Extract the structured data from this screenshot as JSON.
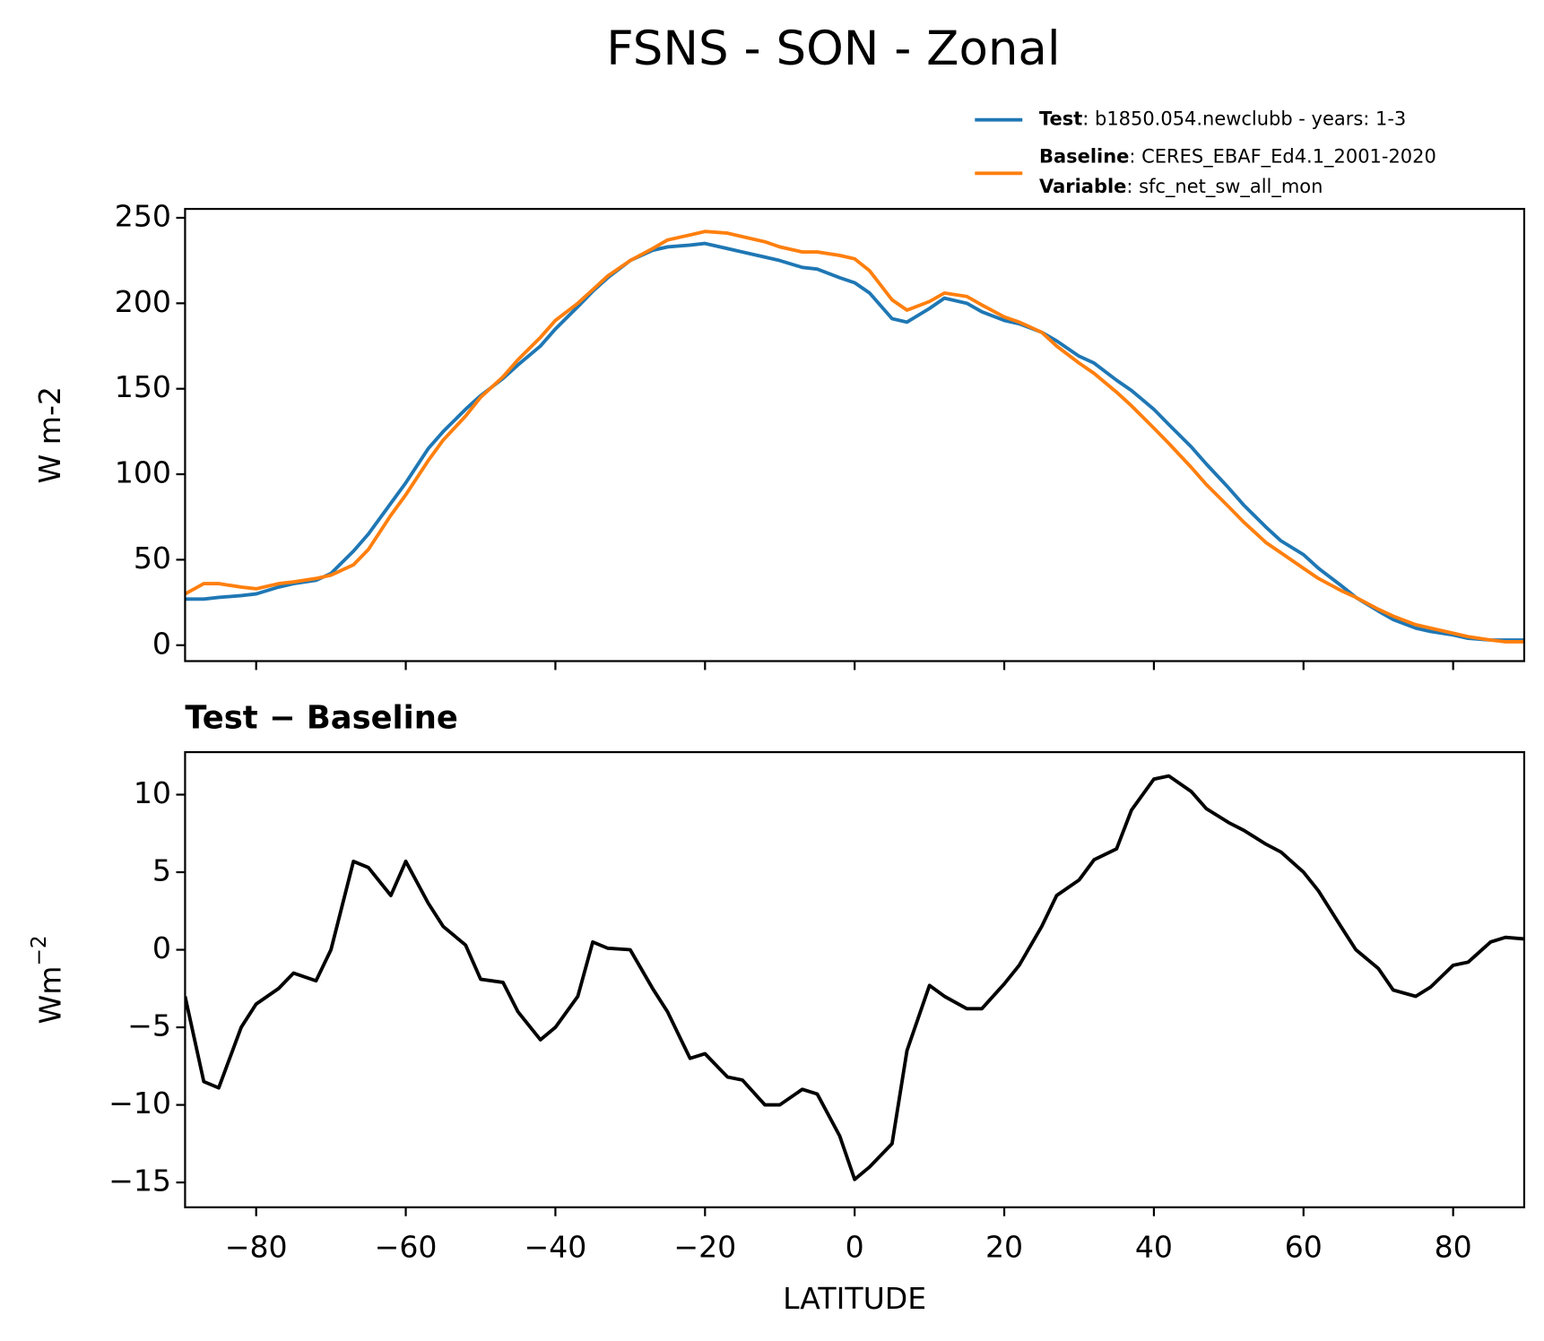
{
  "title": "FSNS - SON - Zonal",
  "chart_data": [
    {
      "type": "line",
      "ylabel": "W m-2",
      "x": [
        -89.5,
        -87,
        -85,
        -82,
        -80,
        -77,
        -75,
        -72,
        -70,
        -67,
        -65,
        -62,
        -60,
        -57,
        -55,
        -52,
        -50,
        -47,
        -45,
        -42,
        -40,
        -37,
        -35,
        -33,
        -30,
        -27,
        -25,
        -22,
        -20,
        -17,
        -15,
        -12,
        -10,
        -7,
        -5,
        -2,
        0,
        2,
        5,
        7,
        10,
        12,
        15,
        17,
        20,
        22,
        25,
        27,
        30,
        32,
        35,
        37,
        40,
        42,
        45,
        47,
        50,
        52,
        55,
        57,
        60,
        62,
        65,
        67,
        70,
        72,
        75,
        77,
        80,
        82,
        85,
        87,
        89.5
      ],
      "series": [
        {
          "name": "Test",
          "detail": ": b1850.054.newclubb - years: 1-3",
          "color": "#1f77b4",
          "values": [
            27,
            27,
            28,
            29,
            30,
            34,
            36,
            38,
            42,
            55,
            65,
            83,
            95,
            115,
            125,
            138,
            146,
            156,
            164,
            175,
            185,
            198,
            207,
            215,
            225,
            231,
            233,
            234,
            235,
            232,
            230,
            227,
            225,
            221,
            220,
            215,
            212,
            206,
            191,
            189,
            197,
            203,
            200,
            195,
            190,
            188,
            183,
            178,
            169,
            165,
            155,
            149,
            138,
            129,
            116,
            106,
            92,
            82,
            69,
            61,
            53,
            45,
            35,
            28,
            20,
            15,
            10,
            8,
            6,
            4,
            3,
            3,
            3
          ]
        },
        {
          "name": "Baseline",
          "detail": ": CERES_EBAF_Ed4.1_2001-2020",
          "color": "#ff7f0e",
          "values": [
            30,
            36,
            36,
            34,
            33,
            36,
            37,
            39,
            41,
            47,
            56,
            76,
            88,
            108,
            120,
            134,
            145,
            157,
            167,
            180,
            190,
            200,
            208,
            216,
            225,
            232,
            237,
            240,
            242,
            241,
            239,
            236,
            233,
            230,
            230,
            228,
            226,
            219,
            202,
            196,
            201,
            206,
            204,
            199,
            192,
            189,
            183,
            175,
            165,
            159,
            148,
            140,
            127,
            118,
            104,
            94,
            81,
            72,
            60,
            54,
            45,
            39,
            32,
            28,
            21,
            17,
            12,
            10,
            7,
            5,
            3,
            2,
            2
          ]
        }
      ],
      "legend_extra": {
        "name": "Variable",
        "detail": ": sfc_net_sw_all_mon"
      },
      "xlim": [
        -89.5,
        89.5
      ],
      "xticks": [
        -80,
        -60,
        -40,
        -20,
        0,
        20,
        40,
        60,
        80
      ],
      "xtick_labels": false,
      "ylim": [
        -9.3,
        255.2
      ],
      "yticks": [
        0,
        50,
        100,
        150,
        200,
        250
      ]
    },
    {
      "type": "line",
      "title": "Test − Baseline",
      "ylabel": "Wm",
      "ylabel_sup": "−2",
      "xlabel": "LATITUDE",
      "x": [
        -89.5,
        -87,
        -85,
        -82,
        -80,
        -77,
        -75,
        -72,
        -70,
        -67,
        -65,
        -62,
        -60,
        -57,
        -55,
        -52,
        -50,
        -47,
        -45,
        -42,
        -40,
        -37,
        -35,
        -33,
        -30,
        -27,
        -25,
        -22,
        -20,
        -17,
        -15,
        -12,
        -10,
        -7,
        -5,
        -2,
        0,
        2,
        5,
        7,
        10,
        12,
        15,
        17,
        20,
        22,
        25,
        27,
        30,
        32,
        35,
        37,
        40,
        42,
        45,
        47,
        50,
        52,
        55,
        57,
        60,
        62,
        65,
        67,
        70,
        72,
        75,
        77,
        80,
        82,
        85,
        87,
        89.5
      ],
      "series": [
        {
          "color": "#000000",
          "values": [
            -3,
            -8.5,
            -8.9,
            -5,
            -3.5,
            -2.5,
            -1.5,
            -2,
            0,
            5.7,
            5.3,
            3.5,
            5.7,
            3,
            1.5,
            0.3,
            -1.9,
            -2.1,
            -4,
            -5.8,
            -5,
            -3,
            0.5,
            0.1,
            0,
            -2.5,
            -4,
            -7,
            -6.7,
            -8.2,
            -8.4,
            -10,
            -10,
            -9,
            -9.3,
            -12,
            -14.8,
            -14,
            -12.5,
            -6.5,
            -2.3,
            -3,
            -3.8,
            -3.8,
            -2.2,
            -1,
            1.5,
            3.5,
            4.5,
            5.8,
            6.5,
            9,
            11,
            11.2,
            10.2,
            9.1,
            8.2,
            7.7,
            6.8,
            6.3,
            5,
            3.8,
            1.5,
            0,
            -1.2,
            -2.6,
            -3,
            -2.4,
            -1,
            -0.8,
            0.5,
            0.8,
            0.7
          ]
        }
      ],
      "xlim": [
        -89.5,
        89.5
      ],
      "xticks": [
        {
          "value": -80,
          "label": "−80"
        },
        {
          "value": -60,
          "label": "−60"
        },
        {
          "value": -40,
          "label": "−40"
        },
        {
          "value": -20,
          "label": "−20"
        },
        0,
        20,
        40,
        60,
        80
      ],
      "ylim": [
        -16.6,
        12.74
      ],
      "yticks": [
        {
          "value": -15,
          "label": "−15"
        },
        {
          "value": -10,
          "label": "−10"
        },
        {
          "value": -5,
          "label": "−5"
        },
        0,
        5,
        10
      ]
    }
  ]
}
